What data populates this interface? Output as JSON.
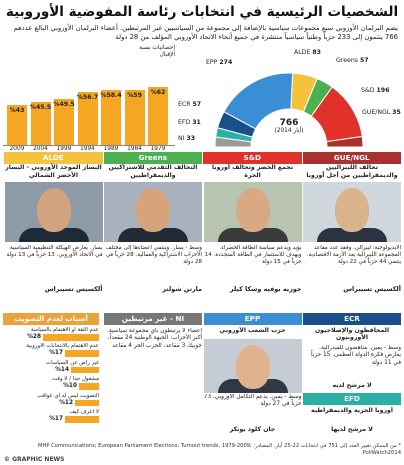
{
  "title": "الشخصيات الرئيسية في انتخابات رئاسة المفوضية الأوروبية",
  "intro": "يضم البرلمان الأوروبي سبع مجموعات سياسية بالإضافة إلى مجموعة من السياسيين غير المرتبطين. أعضاء البرلمان الأوروبي البالغ عددهم 766 ينتمون إلى 233 حزباً وطنياً سياسياً منتشرة في جميع أنحاء الاتحاد الأوروبي المؤلف من 28 دولة",
  "turnout": {
    "label": "إحصائيات نسبة الإقبال",
    "color": "#f5a623",
    "years": [
      "2009",
      "2004",
      "1999",
      "1994",
      "1989",
      "1984",
      "1979"
    ],
    "values": [
      43,
      45.5,
      49.5,
      56.7,
      58.4,
      59,
      62
    ],
    "value_labels": [
      "%43",
      "%45.5",
      "%49.5",
      "%56.7",
      "%58.4",
      "%59",
      "%62"
    ]
  },
  "parliament": {
    "total_value": "766",
    "total_note": "(أيار 2014)",
    "groups": [
      {
        "name": "GUE/NGL",
        "seats": 35,
        "color": "#a8322d",
        "label": "GUE/NGL",
        "seat_label": "35"
      },
      {
        "name": "S&D",
        "seats": 196,
        "color": "#e0322a",
        "label": "S&D",
        "seat_label": "196"
      },
      {
        "name": "Greens",
        "seats": 57,
        "color": "#4caf50",
        "label": "Greens",
        "seat_label": "57"
      },
      {
        "name": "ALDE",
        "seats": 83,
        "color": "#f5c33b",
        "label": "ALDE",
        "seat_label": "83"
      },
      {
        "name": "EPP",
        "seats": 274,
        "color": "#3a8fd4",
        "label": "EPP",
        "seat_label": "274"
      },
      {
        "name": "ECR",
        "seats": 57,
        "color": "#1a4f8c",
        "label": "ECR",
        "seat_label": "57"
      },
      {
        "name": "EFD",
        "seats": 31,
        "color": "#2bb0a5",
        "label": "EFD",
        "seat_label": "31"
      },
      {
        "name": "NI",
        "seats": 33,
        "color": "#9a9a9a",
        "label": "NI",
        "seat_label": "33"
      }
    ]
  },
  "columns": [
    {
      "key": "alde",
      "header": "ALDE",
      "color": "#f5c33b",
      "subtitle": "تحالف الليبراليين والديمقراطيين من أجل أوروبا",
      "face": "#d9b38c",
      "body": "#2a3440",
      "bg": "#cfd6dc",
      "desc": "الأيديولوجية: ليبرالي. وفقد عدد مقاعد المجموعة الليبرالية بعد الأزمة الاقتصادية. ينتمي 44 حزباً في 22 دولة",
      "person": "ألكسيس تسيبراس"
    },
    {
      "key": "greens",
      "header": "Greens",
      "color": "#4caf50",
      "subtitle": "تجمع الخضر وتحالف أوروبا الحرة",
      "face": "#d8a982",
      "body": "#3b3b3b",
      "bg": "#b9c4b0",
      "desc": "يؤيد ويدعم سياسة الطاقة الخضراء. ويهدف للاستثمار في الطاقة المتجددة. 14 حزباً في 15 دولة",
      "person": "جوزيه بوفيه وسكا كيلر"
    },
    {
      "key": "sd",
      "header": "S&D",
      "color": "#e0322a",
      "subtitle": "التحالف التقدمي للاشتراكيين والديمقراطيين",
      "face": "#d6a37b",
      "body": "#222a35",
      "bg": "#a9b2bc",
      "desc": "وسط - يسار. وينتمي أعضاءها إلى مختلف الأحزاب الاشتراكية والعمالية. 28 حزباً في 28 دولة",
      "person": "مارتن شولتز"
    },
    {
      "key": "gue",
      "header": "GUE/NGL",
      "color": "#a8322d",
      "subtitle": "اليسار الموحد الأوروبي - اليسار الأخضر الشمالي",
      "face": "#d3a27e",
      "body": "#1f2a38",
      "bg": "#8e9aa6",
      "desc": "يسار. يعارض الهيكلة التنظيمية السياسية في الاتحاد الأوروبي. 13 حزباً في 13 دولة",
      "person": "ألكسيس تسيبراس"
    }
  ],
  "reasons": {
    "header": "أسباب لعدم التصويت",
    "color": "#f5a623",
    "items": [
      {
        "label": "عدم الثقة أو الاهتمام بالسياسة",
        "value": 28,
        "value_label": "%28"
      },
      {
        "label": "عدم الاهتمام بالانتخابات الأوروبية",
        "value": 17,
        "value_label": "%17"
      },
      {
        "label": "غير راض عن السياسات",
        "value": 14,
        "value_label": "%14"
      },
      {
        "label": "مشغول جداً / لا وقت",
        "value": 10,
        "value_label": "%10"
      },
      {
        "label": "التصويت ليس له أي عواقب",
        "value": 12,
        "value_label": "%12"
      },
      {
        "label": "لا أعرف كيف",
        "value": 17,
        "value_label": "%17"
      }
    ]
  },
  "lower": [
    {
      "key": "ni",
      "header": "NI - غير مرتبطين",
      "color": "#777777",
      "text": "أعضاء لا يرتبطون بأي مجموعة سياسية. أكبر الأحزاب: الجبهة الوطنية 24 مقعداً، جوبيك 3 مقاعد، الحزب الحر 4 مقاعد"
    },
    {
      "key": "epp",
      "header": "EPP",
      "color": "#3a8fd4",
      "subtitle": "حزب الشعب الأوروبي",
      "face": "#e0b28e",
      "body": "#2f3845",
      "bg": "#c5ccd3",
      "text": "وسط - يمين. يدعم التكامل الأوروبي. 73 حزباً في 27 دولة",
      "person": "جان كلود يونكر"
    },
    {
      "key": "ecr",
      "header": "ECR",
      "color": "#1a4f8c",
      "subtitle": "المحافظون والإصلاحيون الأوروبيون",
      "text": "وسط - يمين. مناهضون للفيدرالية. يعارض فكرة الدولة العظمى. 15 حزباً في 11 دولة",
      "person": "لا مرشح لديه"
    },
    {
      "key": "efd",
      "header": "EFD",
      "color": "#2bb0a5",
      "subtitle": "أوروبا الحرية والديمقراطية",
      "text": "أوروبا الحرية والديمقراطية. 11 حزباً في 9 دول",
      "person": "لا مرشح لديها"
    }
  ],
  "footer": "* من الممكن تغيير العدد إلى 751 في انتخابات 22-25 أيار. المصادر: MHP Communications; European Parliament Elections: Turnout trends, 1979-2009; PollWatch2014",
  "logo": "© GRAPHIC NEWS"
}
